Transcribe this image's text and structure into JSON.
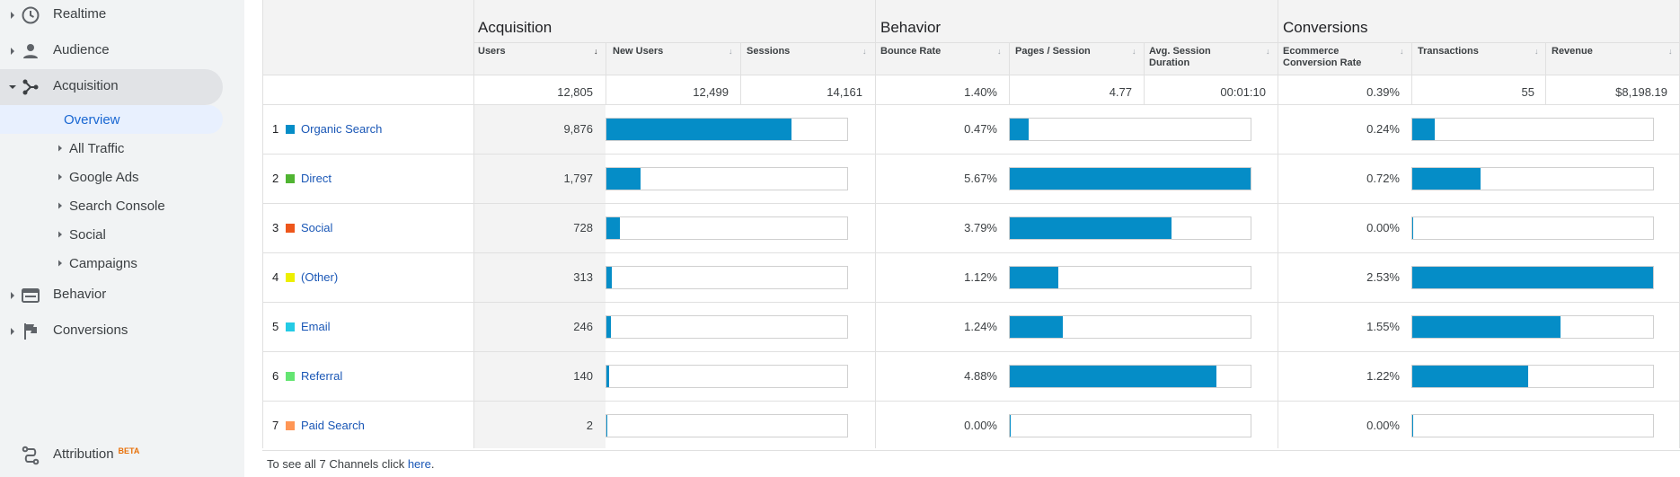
{
  "sidebar": {
    "items": [
      {
        "label": "Realtime",
        "icon": "clock-icon"
      },
      {
        "label": "Audience",
        "icon": "person-icon"
      },
      {
        "label": "Acquisition",
        "icon": "acquisition-icon"
      },
      {
        "label": "Behavior",
        "icon": "behavior-icon"
      },
      {
        "label": "Conversions",
        "icon": "flag-icon"
      },
      {
        "label": "Attribution",
        "icon": "attribution-icon",
        "badge": "BETA"
      }
    ],
    "acquisition_sub": [
      {
        "label": "Overview"
      },
      {
        "label": "All Traffic"
      },
      {
        "label": "Google Ads"
      },
      {
        "label": "Search Console"
      },
      {
        "label": "Social"
      },
      {
        "label": "Campaigns"
      }
    ]
  },
  "table": {
    "groups": {
      "acquisition": "Acquisition",
      "behavior": "Behavior",
      "conversions": "Conversions"
    },
    "columns": {
      "users": "Users",
      "new_users": "New Users",
      "sessions": "Sessions",
      "bounce_rate": "Bounce Rate",
      "pages_session": "Pages / Session",
      "avg_session_1": "Avg. Session",
      "avg_session_2": "Duration",
      "ecom_1": "Ecommerce",
      "ecom_2": "Conversion Rate",
      "transactions": "Transactions",
      "revenue": "Revenue"
    },
    "totals": {
      "users": "12,805",
      "new_users": "12,499",
      "sessions": "14,161",
      "bounce_rate": "1.40%",
      "pages_session": "4.77",
      "avg_session": "00:01:10",
      "ecom": "0.39%",
      "transactions": "55",
      "revenue": "$8,198.19"
    },
    "rows": [
      {
        "idx": "1",
        "channel": "Organic Search",
        "color": "#058dc7",
        "users": "9,876",
        "bounce": "0.47%",
        "ecom": "0.24%",
        "acq_bar": 0.77,
        "beh_bar": 0.08,
        "conv_bar": 0.095
      },
      {
        "idx": "2",
        "channel": "Direct",
        "color": "#50b432",
        "users": "1,797",
        "bounce": "5.67%",
        "ecom": "0.72%",
        "acq_bar": 0.14,
        "beh_bar": 1.0,
        "conv_bar": 0.285
      },
      {
        "idx": "3",
        "channel": "Social",
        "color": "#ed561b",
        "users": "728",
        "bounce": "3.79%",
        "ecom": "0.00%",
        "acq_bar": 0.057,
        "beh_bar": 0.67,
        "conv_bar": 0.0
      },
      {
        "idx": "4",
        "channel": "(Other)",
        "color": "#edef00",
        "users": "313",
        "bounce": "1.12%",
        "ecom": "2.53%",
        "acq_bar": 0.024,
        "beh_bar": 0.2,
        "conv_bar": 1.0
      },
      {
        "idx": "5",
        "channel": "Email",
        "color": "#24cbe5",
        "users": "246",
        "bounce": "1.24%",
        "ecom": "1.55%",
        "acq_bar": 0.019,
        "beh_bar": 0.22,
        "conv_bar": 0.615
      },
      {
        "idx": "6",
        "channel": "Referral",
        "color": "#64e572",
        "users": "140",
        "bounce": "4.88%",
        "ecom": "1.22%",
        "acq_bar": 0.011,
        "beh_bar": 0.86,
        "conv_bar": 0.48
      },
      {
        "idx": "7",
        "channel": "Paid Search",
        "color": "#ff9655",
        "users": "2",
        "bounce": "0.00%",
        "ecom": "0.00%",
        "acq_bar": 0.0,
        "beh_bar": 0.0,
        "conv_bar": 0.0
      }
    ]
  },
  "footer": {
    "text": "To see all 7 Channels click ",
    "link": "here",
    "suffix": "."
  }
}
